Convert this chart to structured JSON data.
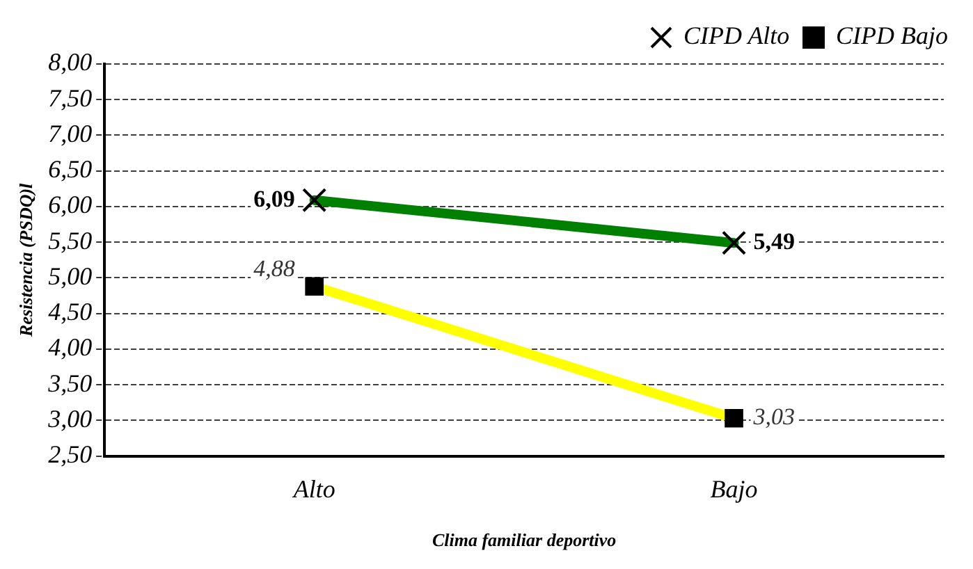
{
  "chart_data": {
    "type": "line",
    "xlabel": "Clima familiar deportivo",
    "ylabel": "Resistencia (PSDQ)l",
    "categories": [
      "Alto",
      "Bajo"
    ],
    "series": [
      {
        "name": "CIPD Alto",
        "color": "#008000",
        "values": [
          6.09,
          5.49
        ],
        "marker": "cross",
        "value_labels": [
          "6,09",
          "5,49"
        ]
      },
      {
        "name": "CIPD Bajo",
        "color": "#ffff00",
        "values": [
          4.88,
          3.03
        ],
        "marker": "square",
        "value_labels": [
          "4,88",
          "3,03"
        ]
      }
    ],
    "ylim": [
      2.5,
      8
    ],
    "yticks": [
      {
        "value": 2.5,
        "label": "2,50"
      },
      {
        "value": 3,
        "label": "3,00"
      },
      {
        "value": 3.5,
        "label": "3,50"
      },
      {
        "value": 4,
        "label": "4,00"
      },
      {
        "value": 4.5,
        "label": "4,50"
      },
      {
        "value": 5,
        "label": "5,00"
      },
      {
        "value": 5.5,
        "label": "5,50"
      },
      {
        "value": 6,
        "label": "6,00"
      },
      {
        "value": 6.5,
        "label": "6,50"
      },
      {
        "value": 7,
        "label": "7,00"
      },
      {
        "value": 7.5,
        "label": "7,50"
      },
      {
        "value": 8,
        "label": "8,00"
      }
    ],
    "grid": "y",
    "legend": "top right",
    "line_style": "solid"
  }
}
